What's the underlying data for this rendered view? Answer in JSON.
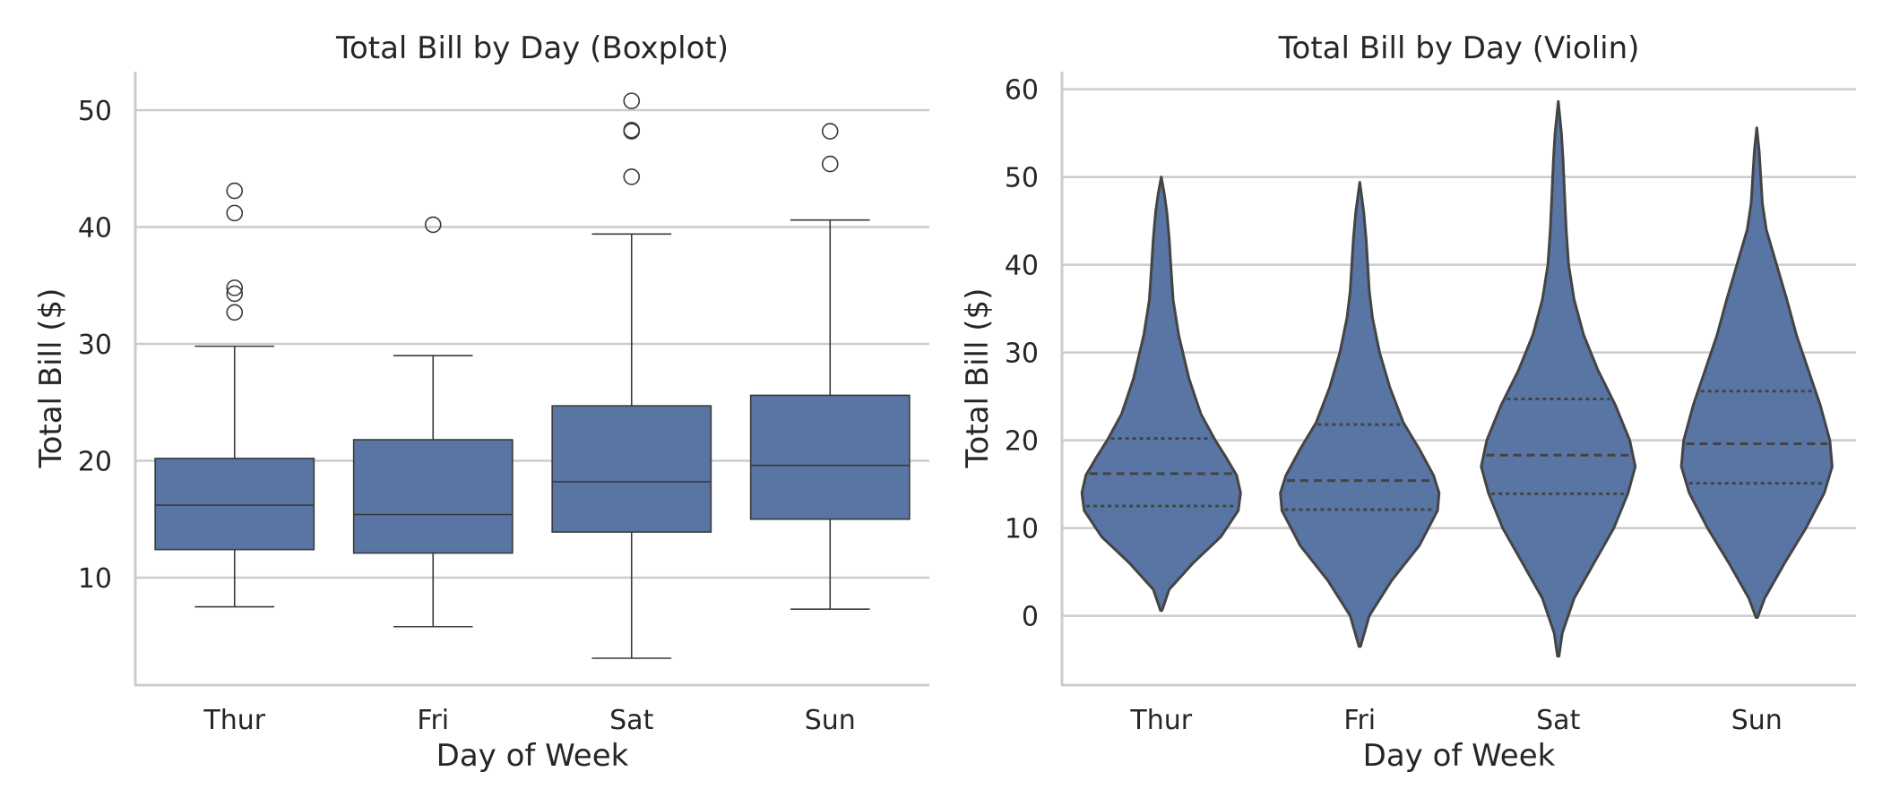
{
  "chart_data": [
    {
      "type": "box",
      "title": "Total Bill by Day (Boxplot)",
      "xlabel": "Day of Week",
      "ylabel": "Total Bill ($)",
      "categories": [
        "Thur",
        "Fri",
        "Sat",
        "Sun"
      ],
      "ylim": [
        0.8,
        53.3
      ],
      "yticks": [
        10,
        20,
        30,
        40,
        50
      ],
      "grid": "y",
      "color": "#5875a4",
      "boxes": [
        {
          "category": "Thur",
          "whisker_low": 7.5,
          "q1": 12.4,
          "median": 16.2,
          "q3": 20.2,
          "whisker_high": 29.8,
          "fliers": [
            32.7,
            34.3,
            34.8,
            41.2,
            43.1
          ]
        },
        {
          "category": "Fri",
          "whisker_low": 5.8,
          "q1": 12.1,
          "median": 15.4,
          "q3": 21.8,
          "whisker_high": 29.0,
          "fliers": [
            40.2
          ]
        },
        {
          "category": "Sat",
          "whisker_low": 3.1,
          "q1": 13.9,
          "median": 18.2,
          "q3": 24.7,
          "whisker_high": 39.4,
          "fliers": [
            44.3,
            48.3,
            48.2,
            50.8
          ]
        },
        {
          "category": "Sun",
          "whisker_low": 7.3,
          "q1": 15.0,
          "median": 19.6,
          "q3": 25.6,
          "whisker_high": 40.6,
          "fliers": [
            45.4,
            48.2
          ]
        }
      ]
    },
    {
      "type": "violin",
      "title": "Total Bill by Day (Violin)",
      "xlabel": "Day of Week",
      "ylabel": "Total Bill ($)",
      "categories": [
        "Thur",
        "Fri",
        "Sat",
        "Sun"
      ],
      "ylim": [
        -7.9,
        62
      ],
      "yticks": [
        0,
        10,
        20,
        30,
        40,
        50,
        60
      ],
      "grid": "y",
      "color": "#5875a4",
      "inner": "quartile",
      "violins": [
        {
          "category": "Thur",
          "min": 0.6,
          "max": 50.0,
          "q1": 12.5,
          "median": 16.2,
          "q3": 20.2,
          "profile": [
            [
              0.6,
              0.01
            ],
            [
              3,
              0.1
            ],
            [
              6,
              0.4
            ],
            [
              9,
              0.75
            ],
            [
              12,
              0.97
            ],
            [
              14,
              1.0
            ],
            [
              16,
              0.95
            ],
            [
              18,
              0.82
            ],
            [
              20,
              0.68
            ],
            [
              23,
              0.5
            ],
            [
              27,
              0.35
            ],
            [
              32,
              0.22
            ],
            [
              36,
              0.15
            ],
            [
              40,
              0.12
            ],
            [
              43,
              0.1
            ],
            [
              46,
              0.07
            ],
            [
              48,
              0.04
            ],
            [
              50,
              0.0
            ]
          ]
        },
        {
          "category": "Fri",
          "min": -3.5,
          "max": 49.4,
          "q1": 12.1,
          "median": 15.4,
          "q3": 21.8,
          "profile": [
            [
              -3.5,
              0.01
            ],
            [
              0,
              0.12
            ],
            [
              4,
              0.4
            ],
            [
              8,
              0.75
            ],
            [
              12,
              0.98
            ],
            [
              14,
              1.0
            ],
            [
              16,
              0.93
            ],
            [
              19,
              0.75
            ],
            [
              22,
              0.55
            ],
            [
              26,
              0.38
            ],
            [
              30,
              0.25
            ],
            [
              34,
              0.16
            ],
            [
              37,
              0.12
            ],
            [
              40,
              0.1
            ],
            [
              43,
              0.08
            ],
            [
              46,
              0.05
            ],
            [
              49.4,
              0.0
            ]
          ]
        },
        {
          "category": "Sat",
          "min": -4.6,
          "max": 58.6,
          "q1": 13.9,
          "median": 18.3,
          "q3": 24.7,
          "profile": [
            [
              -4.6,
              0.01
            ],
            [
              -2,
              0.05
            ],
            [
              2,
              0.2
            ],
            [
              6,
              0.45
            ],
            [
              10,
              0.7
            ],
            [
              14,
              0.88
            ],
            [
              17,
              0.97
            ],
            [
              20,
              0.9
            ],
            [
              24,
              0.72
            ],
            [
              28,
              0.5
            ],
            [
              32,
              0.32
            ],
            [
              36,
              0.2
            ],
            [
              40,
              0.13
            ],
            [
              44,
              0.1
            ],
            [
              48,
              0.08
            ],
            [
              52,
              0.06
            ],
            [
              55,
              0.04
            ],
            [
              58.6,
              0.0
            ]
          ]
        },
        {
          "category": "Sun",
          "min": -0.2,
          "max": 55.6,
          "q1": 15.1,
          "median": 19.6,
          "q3": 25.6,
          "profile": [
            [
              -0.2,
              0.01
            ],
            [
              2,
              0.1
            ],
            [
              6,
              0.35
            ],
            [
              10,
              0.62
            ],
            [
              14,
              0.85
            ],
            [
              17,
              0.95
            ],
            [
              20,
              0.92
            ],
            [
              24,
              0.8
            ],
            [
              28,
              0.65
            ],
            [
              32,
              0.5
            ],
            [
              36,
              0.38
            ],
            [
              40,
              0.25
            ],
            [
              44,
              0.12
            ],
            [
              47,
              0.07
            ],
            [
              50,
              0.05
            ],
            [
              53,
              0.03
            ],
            [
              55.6,
              0.0
            ]
          ]
        }
      ]
    }
  ]
}
